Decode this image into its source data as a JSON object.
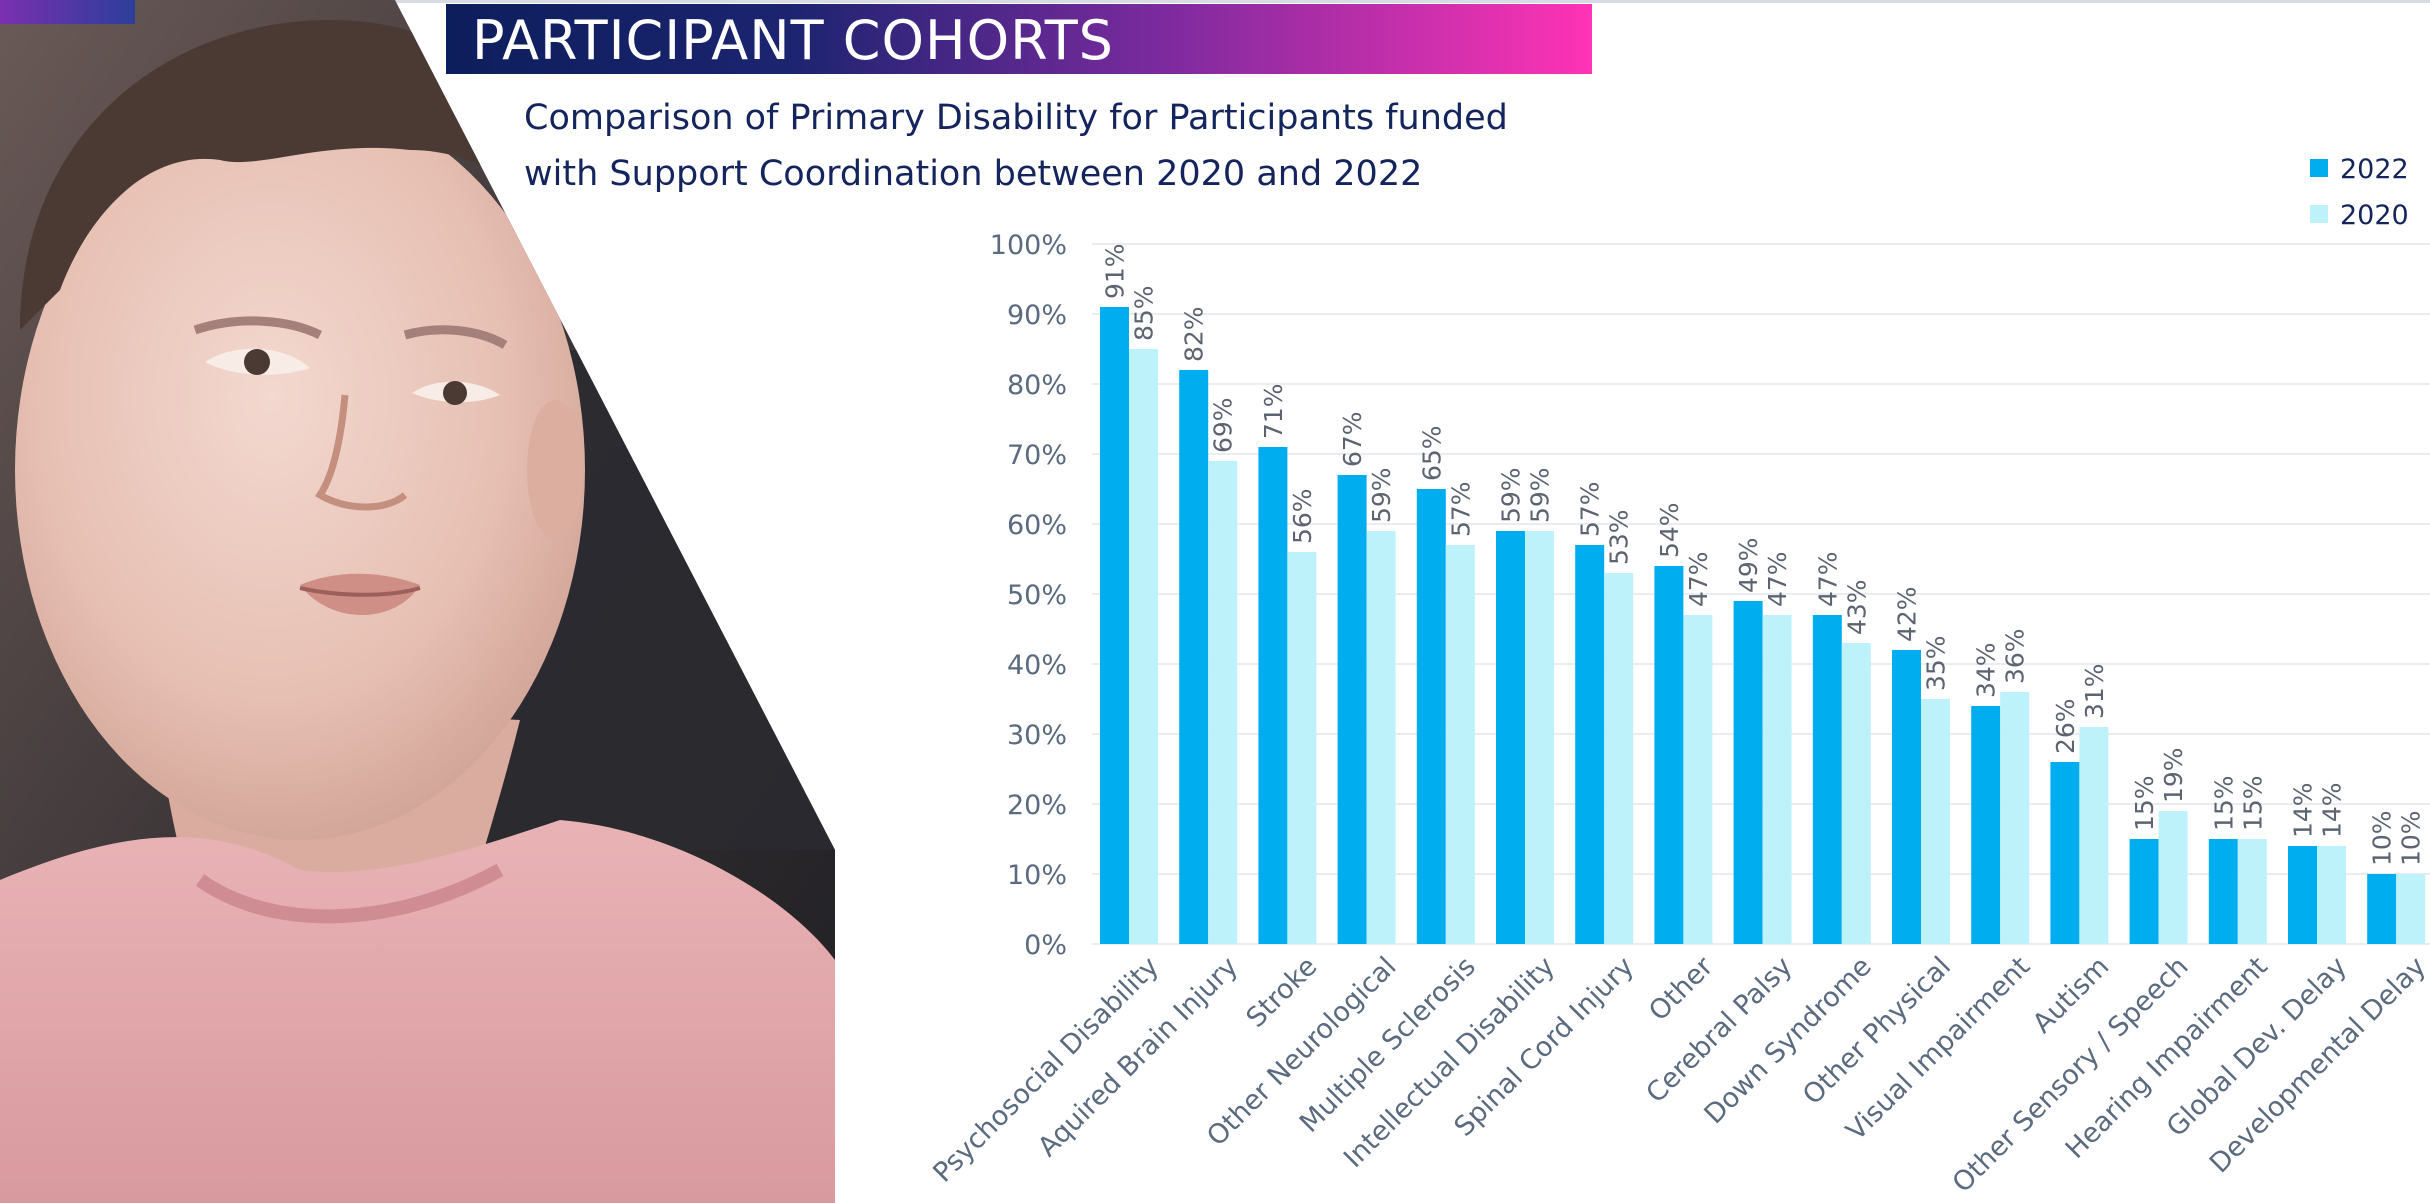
{
  "header": {
    "banner_title": "PARTICIPANT COHORTS"
  },
  "chart_data": {
    "type": "bar",
    "title": "Comparison of Primary Disability for Participants funded with Support Coordination between 2020 and 2022",
    "title_lines": [
      "Comparison of Primary Disability for Participants funded",
      "with Support Coordination between 2020 and 2022"
    ],
    "xlabel": "",
    "ylabel": "",
    "ylim": [
      0,
      100
    ],
    "yticks": [
      0,
      10,
      20,
      30,
      40,
      50,
      60,
      70,
      80,
      90,
      100
    ],
    "ytick_labels": [
      "0%",
      "10%",
      "20%",
      "30%",
      "40%",
      "50%",
      "60%",
      "70%",
      "80%",
      "90%",
      "100%"
    ],
    "grid": true,
    "legend_position": "top-right",
    "categories": [
      "Psychosocial Disability",
      "Aquired Brain Injury",
      "Stroke",
      "Other Neurological",
      "Multiple Sclerosis",
      "Intellectual Disability",
      "Spinal Cord Injury",
      "Other",
      "Cerebral Palsy",
      "Down Syndrome",
      "Other Physical",
      "Visual Impairment",
      "Autism",
      "Other Sensory / Speech",
      "Hearing Impairment",
      "Global Dev. Delay",
      "Developmental Delay"
    ],
    "series": [
      {
        "name": "2022",
        "color": "#00aeef",
        "values": [
          91,
          82,
          71,
          67,
          65,
          59,
          57,
          54,
          49,
          47,
          42,
          34,
          26,
          15,
          15,
          14,
          10
        ],
        "labels": [
          "91%",
          "82%",
          "71%",
          "67%",
          "65%",
          "59%",
          "57%",
          "54%",
          "49%",
          "47%",
          "42%",
          "34%",
          "26%",
          "15%",
          "15%",
          "14%",
          "10%"
        ]
      },
      {
        "name": "2020",
        "color": "#bdf2fb",
        "values": [
          85,
          69,
          56,
          59,
          57,
          59,
          53,
          47,
          47,
          43,
          35,
          36,
          31,
          19,
          15,
          14,
          10
        ],
        "labels": [
          "85%",
          "69%",
          "56%",
          "59%",
          "57%",
          "59%",
          "53%",
          "47%",
          "47%",
          "43%",
          "35%",
          "36%",
          "31%",
          "19%",
          "15%",
          "14%",
          "10%"
        ]
      }
    ]
  }
}
